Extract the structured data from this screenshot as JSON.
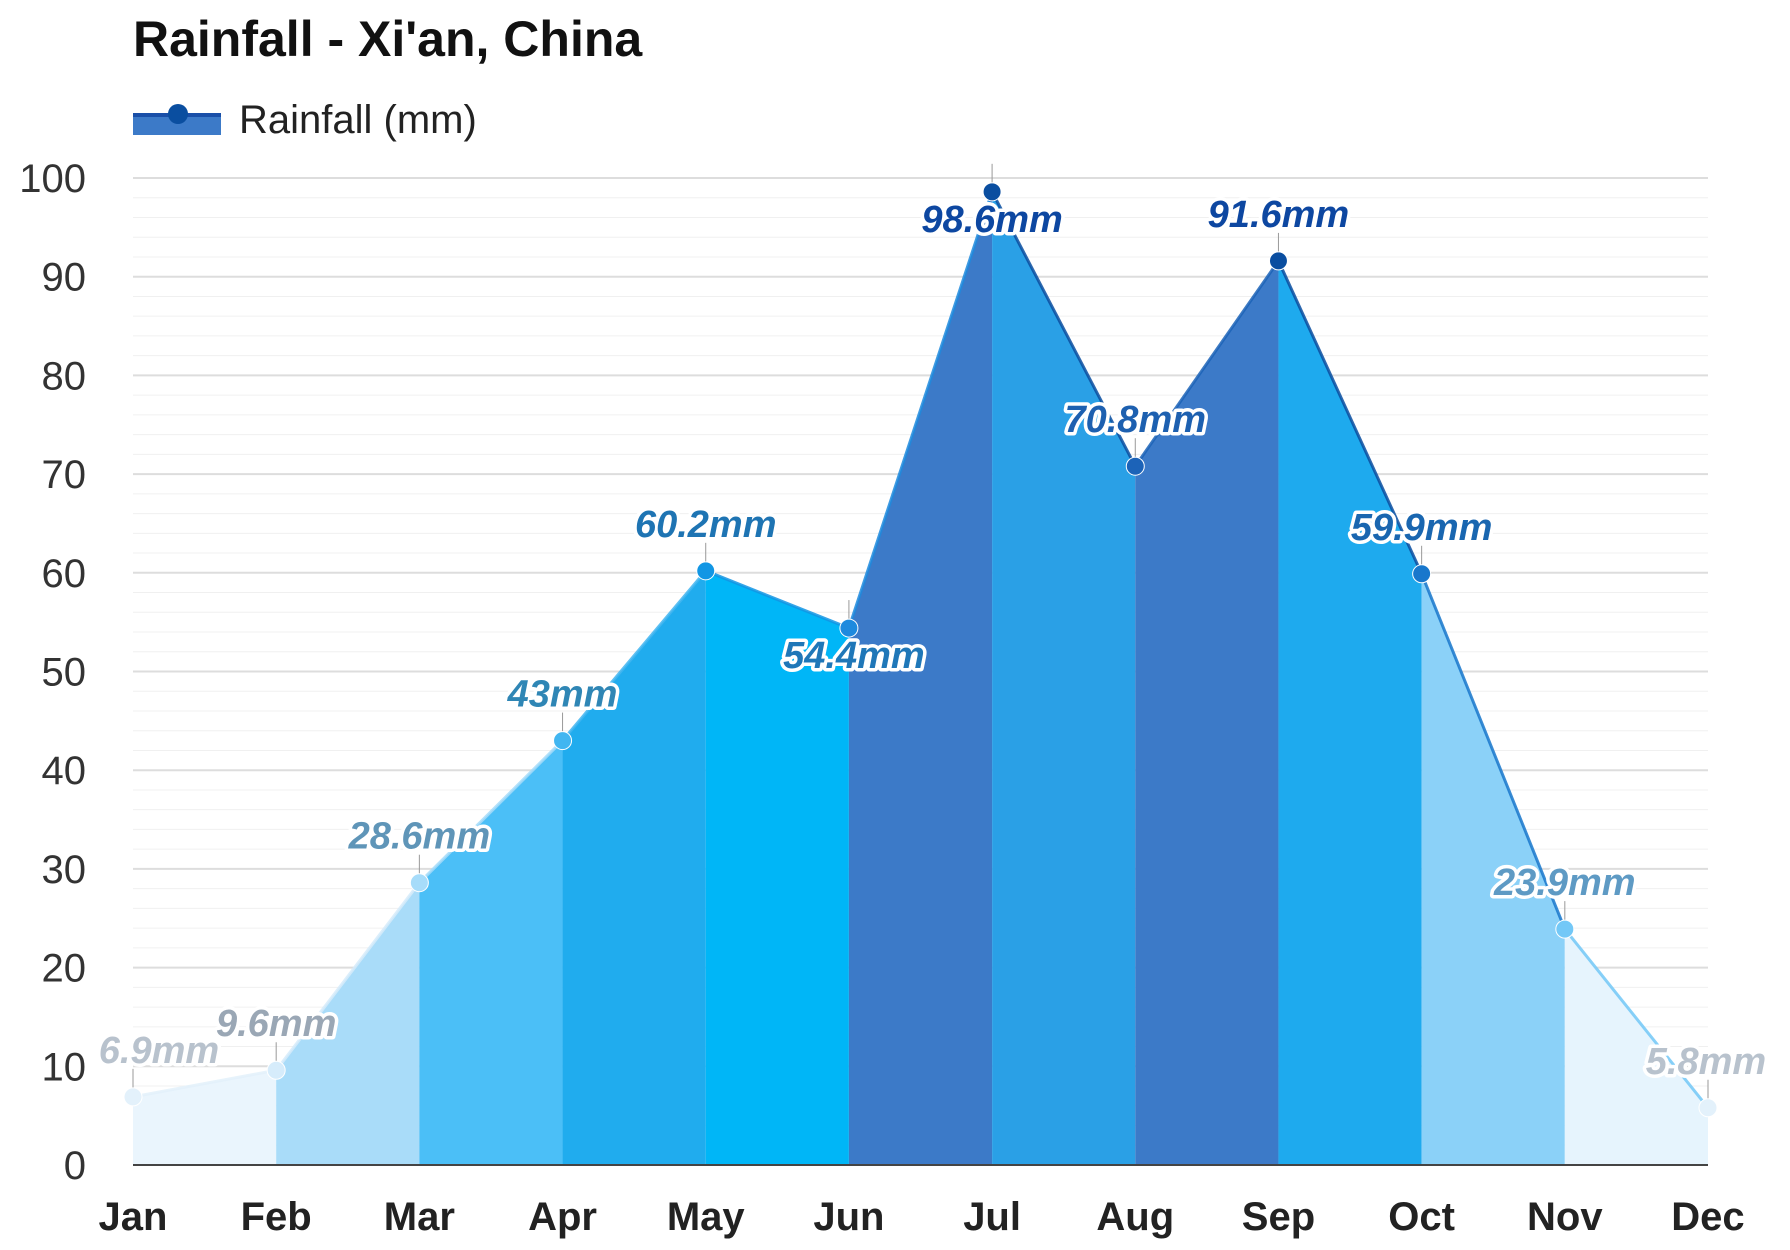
{
  "chart_data": {
    "type": "area",
    "title": "Rainfall - Xi'an, China",
    "legend": {
      "label": "Rainfall (mm)",
      "placement": "top-left"
    },
    "categories": [
      "Jan",
      "Feb",
      "Mar",
      "Apr",
      "May",
      "Jun",
      "Jul",
      "Aug",
      "Sep",
      "Oct",
      "Nov",
      "Dec"
    ],
    "series": [
      {
        "name": "Rainfall (mm)",
        "values": [
          6.9,
          9.6,
          28.6,
          43,
          60.2,
          54.4,
          98.6,
          70.8,
          91.6,
          59.9,
          23.9,
          5.8
        ]
      }
    ],
    "data_labels": [
      "6.9mm",
      "9.6mm",
      "28.6mm",
      "43mm",
      "60.2mm",
      "54.4mm",
      "98.6mm",
      "70.8mm",
      "91.6mm",
      "59.9mm",
      "23.9mm",
      "5.8mm"
    ],
    "ylim": [
      0,
      100
    ],
    "yticks": [
      0,
      10,
      20,
      30,
      40,
      50,
      60,
      70,
      80,
      90,
      100
    ],
    "grid": true,
    "segment_colors": [
      "#eaf5fd",
      "#a9dcf9",
      "#4bbff7",
      "#20acee",
      "#00b6f7",
      "#3c7ac8",
      "#2aa0e6",
      "#3c7ac8",
      "#1eaaee",
      "#8bd1f8",
      "#e6f4fd"
    ],
    "point_colors": [
      "#e3f1fb",
      "#d6ecfb",
      "#a6dcfa",
      "#41b6f1",
      "#1296e4",
      "#1e8ade",
      "#0a4ea0",
      "#1c63b8",
      "#0a4ea0",
      "#1877cc",
      "#73c8f7",
      "#e3f1fb"
    ],
    "label_colors": [
      "#b8c2cd",
      "#9aa7b5",
      "#5f95b8",
      "#2f86b5",
      "#1e74b3",
      "#1f77b8",
      "#0d47a1",
      "#1d60b0",
      "#0d47a1",
      "#1966b0",
      "#5e9ac4",
      "#b8c2cd"
    ]
  }
}
